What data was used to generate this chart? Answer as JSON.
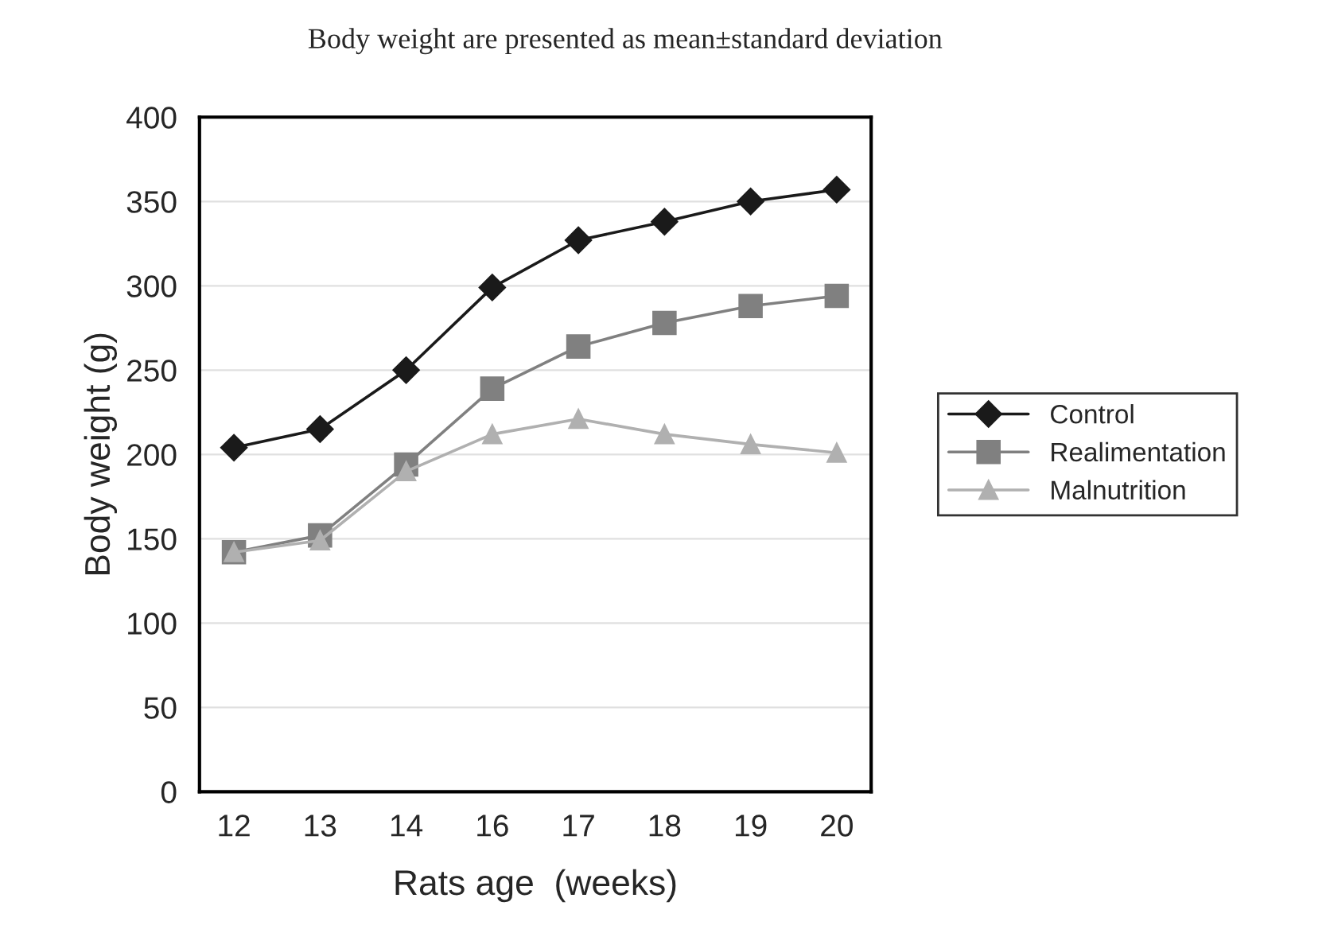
{
  "chart_data": {
    "type": "line",
    "title": "Body weight are presented as mean±standard deviation",
    "xlabel": "Rats age  (weeks)",
    "ylabel": "Body weight (g)",
    "categories": [
      "12",
      "13",
      "14",
      "16",
      "17",
      "18",
      "19",
      "20"
    ],
    "series": [
      {
        "name": "Control",
        "color": "#1a1a1a",
        "marker": "diamond",
        "values": [
          204,
          215,
          250,
          299,
          327,
          338,
          350,
          357
        ]
      },
      {
        "name": "Realimentation",
        "color": "#808080",
        "marker": "square",
        "values": [
          142,
          152,
          194,
          239,
          264,
          278,
          288,
          294
        ]
      },
      {
        "name": "Malnutrition",
        "color": "#b0b0b0",
        "marker": "triangle",
        "values": [
          142,
          149,
          190,
          212,
          221,
          212,
          206,
          201
        ]
      }
    ],
    "ylim": [
      0,
      400
    ],
    "yticks": [
      0,
      50,
      100,
      150,
      200,
      250,
      300,
      350,
      400
    ],
    "grid": "y",
    "legend": "right"
  }
}
